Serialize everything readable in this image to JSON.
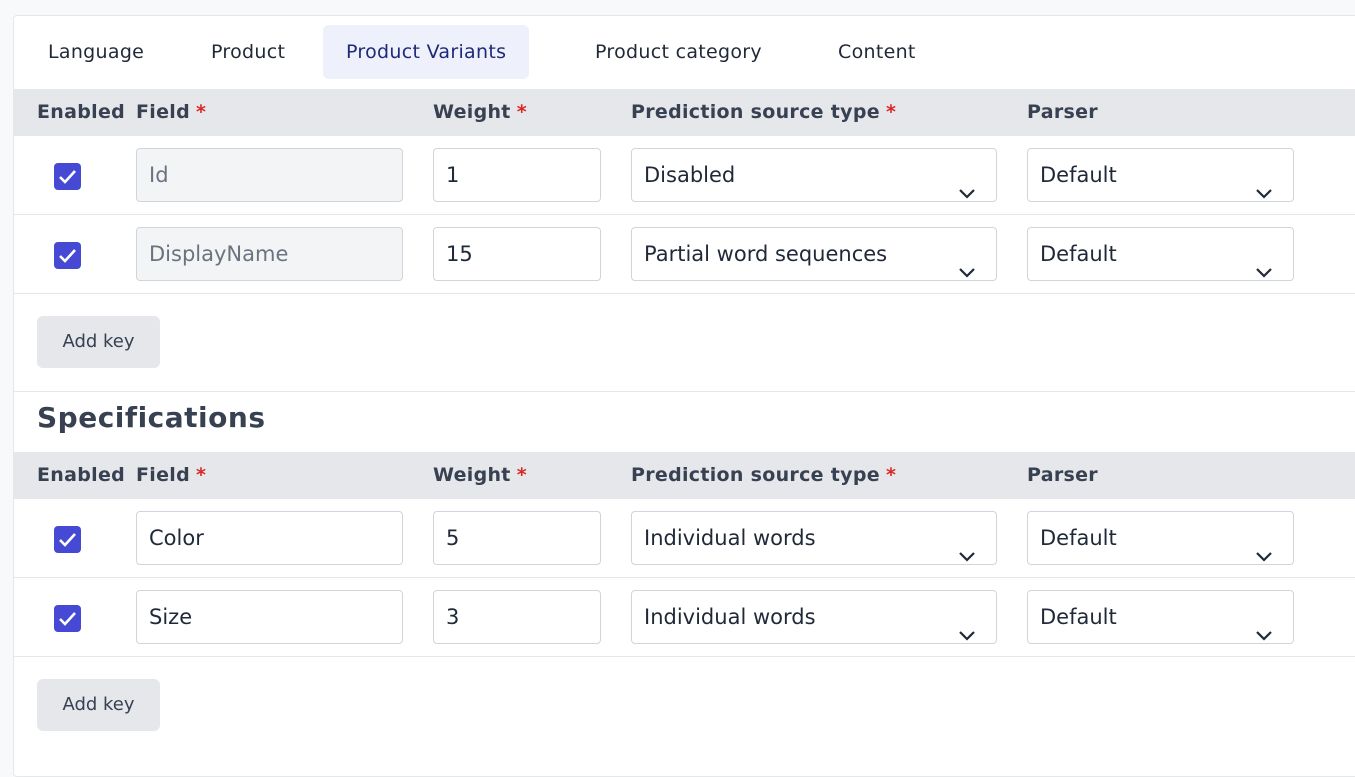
{
  "tabs": {
    "items": [
      "Language",
      "Product",
      "Product Variants",
      "Product category",
      "Content"
    ],
    "active": 2
  },
  "required_mark": "*",
  "tables": [
    {
      "title": null,
      "columns": [
        {
          "label": "Enabled",
          "required": false
        },
        {
          "label": "Field",
          "required": true
        },
        {
          "label": "Weight",
          "required": true
        },
        {
          "label": "Prediction source type",
          "required": true
        },
        {
          "label": "Parser",
          "required": false
        }
      ],
      "rows": [
        {
          "enabled": true,
          "field": "Id",
          "readonly": true,
          "weight": 1,
          "source": "Disabled",
          "parser": "Default"
        },
        {
          "enabled": true,
          "field": "DisplayName",
          "readonly": true,
          "weight": 15,
          "source": "Partial word sequences",
          "parser": "Default"
        }
      ],
      "button": "Add key"
    },
    {
      "title": "Specifications",
      "columns": [
        {
          "label": "Enabled",
          "required": false
        },
        {
          "label": "Field",
          "required": true
        },
        {
          "label": "Weight",
          "required": true
        },
        {
          "label": "Prediction source type",
          "required": true
        },
        {
          "label": "Parser",
          "required": false
        }
      ],
      "rows": [
        {
          "enabled": true,
          "field": "Color",
          "readonly": false,
          "weight": 5,
          "source": "Individual words",
          "parser": "Default"
        },
        {
          "enabled": true,
          "field": "Size",
          "readonly": false,
          "weight": 3,
          "source": "Individual words",
          "parser": "Default"
        }
      ],
      "button": "Add key"
    }
  ]
}
